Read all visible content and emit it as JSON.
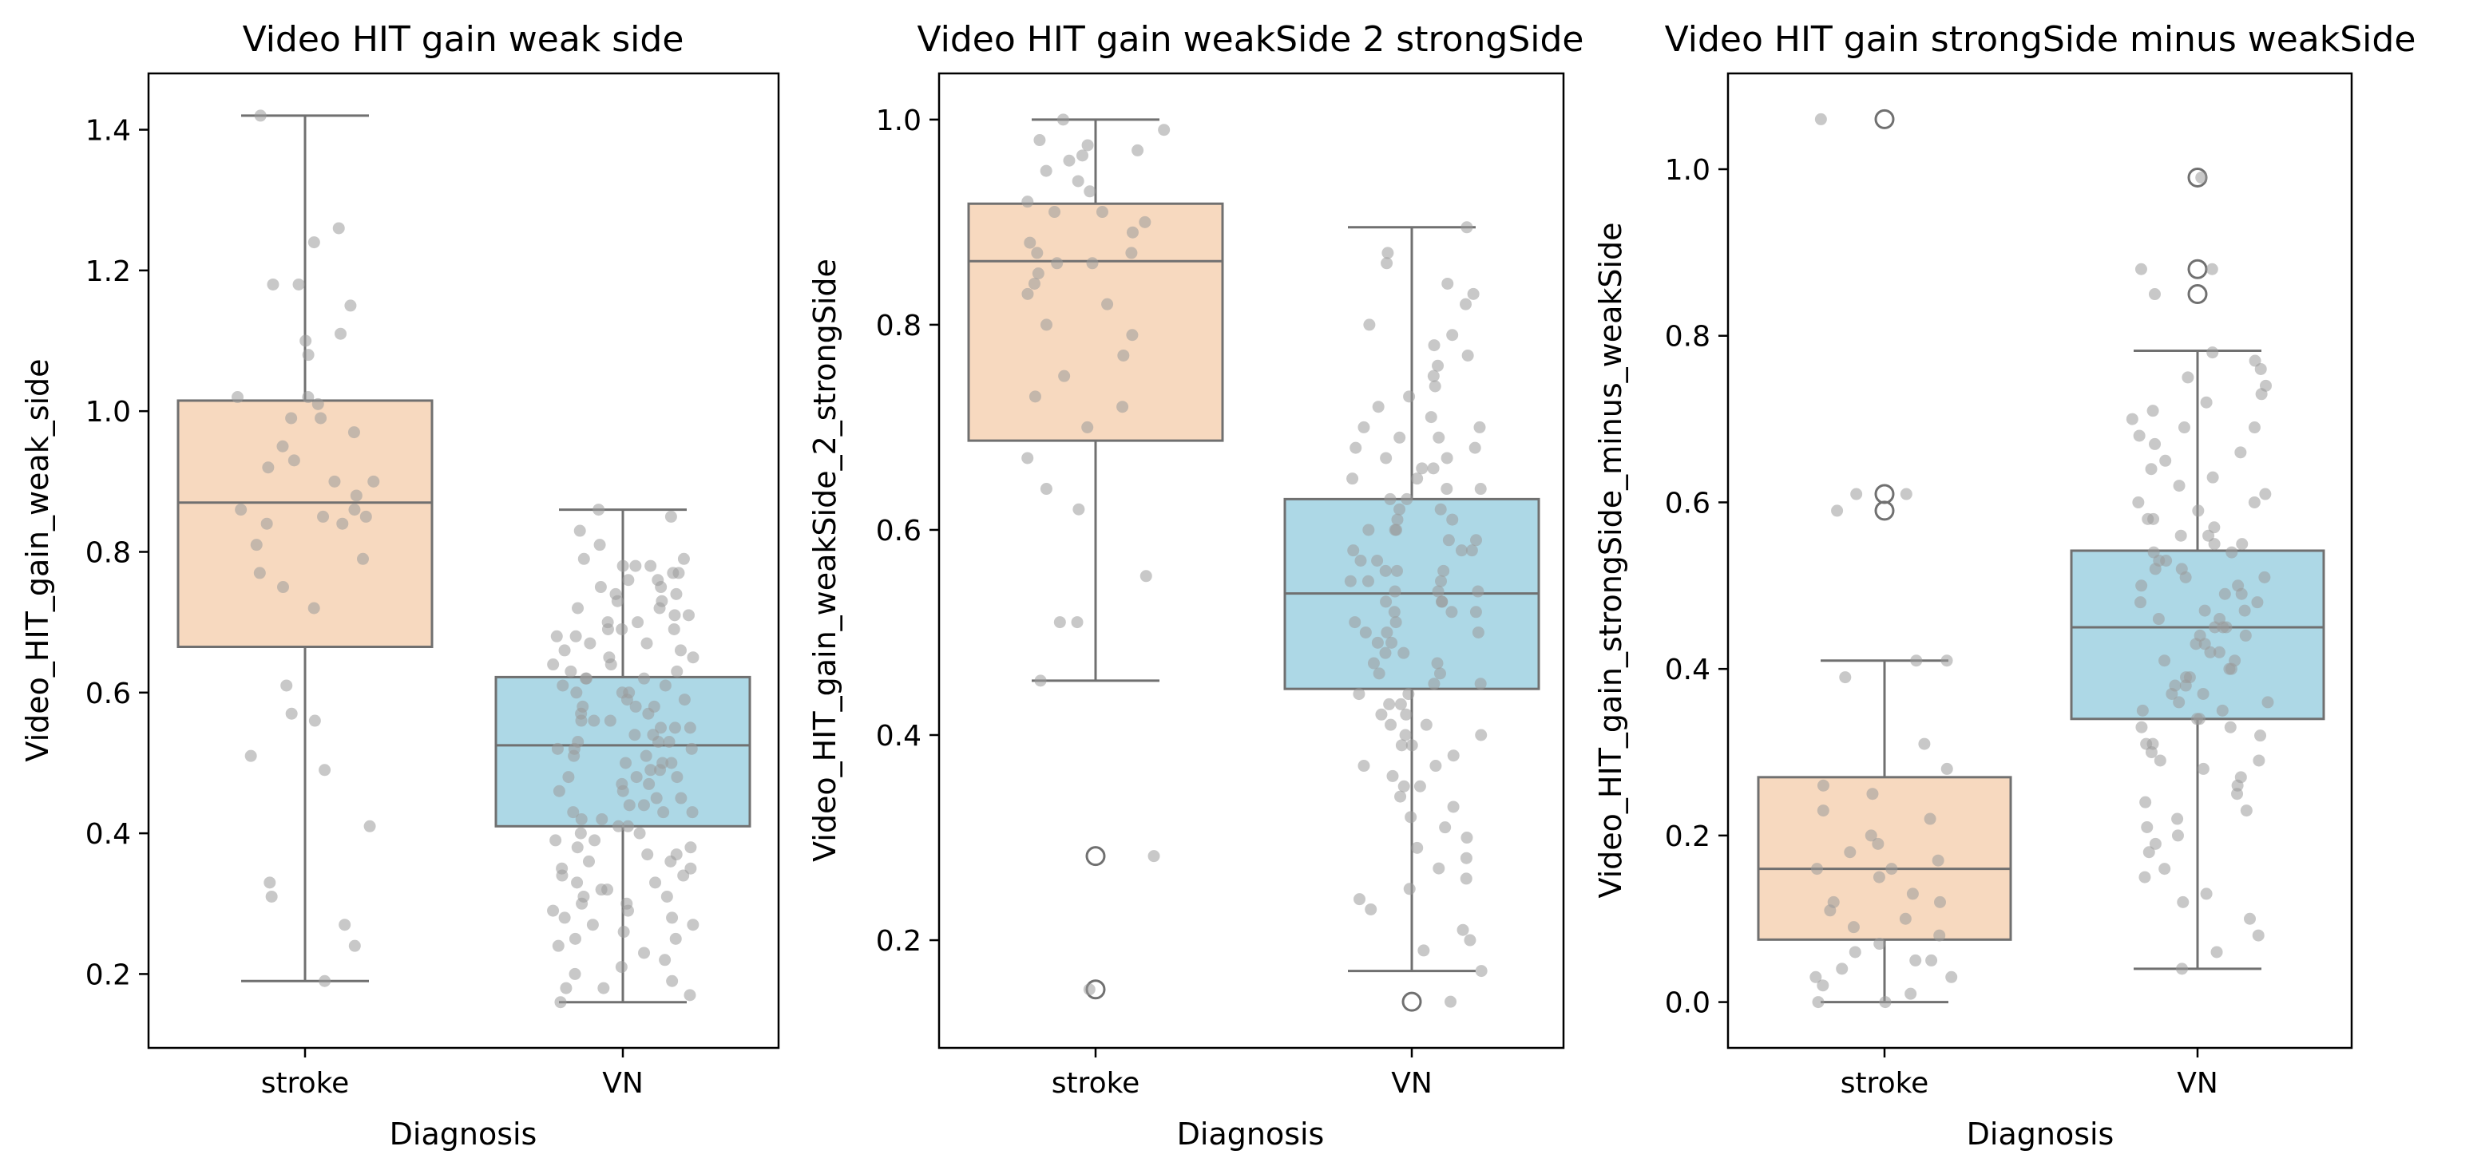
{
  "colors": {
    "stroke_box": "#f7d9bf",
    "vn_box": "#add8e6",
    "box_edge": "#707070",
    "points": "#9a9a9a"
  },
  "chart_data": [
    {
      "type": "boxplot",
      "title": "Video HIT gain weak side",
      "xlabel": "Diagnosis",
      "ylabel": "Video_HIT_gain_weak_side",
      "categories": [
        "stroke",
        "VN"
      ],
      "ylim": [
        0.095,
        1.48
      ],
      "yticks": [
        0.2,
        0.4,
        0.6,
        0.8,
        1.0,
        1.2,
        1.4
      ],
      "ytick_labels": [
        "0.2",
        "0.4",
        "0.6",
        "0.8",
        "1.0",
        "1.2",
        "1.4"
      ],
      "boxes": [
        {
          "category": "stroke",
          "whisker_low": 0.19,
          "q1": 0.665,
          "median": 0.87,
          "q3": 1.015,
          "whisker_high": 1.42,
          "outliers": []
        },
        {
          "category": "VN",
          "whisker_low": 0.16,
          "q1": 0.41,
          "median": 0.525,
          "q3": 0.622,
          "whisker_high": 0.86,
          "outliers": []
        }
      ],
      "points": {
        "stroke": [
          1.42,
          1.26,
          1.24,
          1.18,
          1.18,
          1.15,
          1.11,
          1.1,
          1.08,
          1.02,
          1.02,
          1.01,
          0.99,
          0.99,
          0.97,
          0.95,
          0.93,
          0.92,
          0.9,
          0.9,
          0.88,
          0.86,
          0.86,
          0.85,
          0.85,
          0.84,
          0.84,
          0.81,
          0.79,
          0.77,
          0.75,
          0.72,
          0.61,
          0.57,
          0.56,
          0.51,
          0.49,
          0.41,
          0.33,
          0.31,
          0.27,
          0.24,
          0.19
        ],
        "VN": [
          0.86,
          0.85,
          0.83,
          0.81,
          0.79,
          0.79,
          0.78,
          0.78,
          0.78,
          0.77,
          0.77,
          0.76,
          0.76,
          0.75,
          0.75,
          0.74,
          0.74,
          0.73,
          0.73,
          0.72,
          0.72,
          0.71,
          0.71,
          0.7,
          0.7,
          0.69,
          0.69,
          0.69,
          0.68,
          0.68,
          0.67,
          0.67,
          0.66,
          0.66,
          0.65,
          0.65,
          0.64,
          0.64,
          0.63,
          0.63,
          0.62,
          0.62,
          0.62,
          0.61,
          0.61,
          0.6,
          0.6,
          0.6,
          0.59,
          0.59,
          0.58,
          0.58,
          0.58,
          0.57,
          0.57,
          0.56,
          0.56,
          0.56,
          0.55,
          0.55,
          0.55,
          0.54,
          0.54,
          0.53,
          0.53,
          0.53,
          0.52,
          0.52,
          0.52,
          0.51,
          0.51,
          0.5,
          0.5,
          0.5,
          0.49,
          0.49,
          0.48,
          0.48,
          0.48,
          0.47,
          0.47,
          0.46,
          0.46,
          0.45,
          0.45,
          0.44,
          0.44,
          0.43,
          0.43,
          0.43,
          0.42,
          0.42,
          0.41,
          0.41,
          0.4,
          0.4,
          0.39,
          0.39,
          0.38,
          0.38,
          0.37,
          0.37,
          0.36,
          0.36,
          0.35,
          0.35,
          0.34,
          0.34,
          0.33,
          0.33,
          0.32,
          0.32,
          0.31,
          0.31,
          0.3,
          0.3,
          0.29,
          0.29,
          0.28,
          0.28,
          0.27,
          0.27,
          0.26,
          0.25,
          0.25,
          0.24,
          0.23,
          0.22,
          0.21,
          0.2,
          0.19,
          0.18,
          0.18,
          0.17,
          0.16
        ]
      }
    },
    {
      "type": "boxplot",
      "title": "Video HIT gain weakSide 2 strongSide",
      "xlabel": "Diagnosis",
      "ylabel": "Video_HIT_gain_weakSide_2_strongSide",
      "categories": [
        "stroke",
        "VN"
      ],
      "ylim": [
        0.095,
        1.045
      ],
      "yticks": [
        0.2,
        0.4,
        0.6,
        0.8,
        1.0
      ],
      "ytick_labels": [
        "0.2",
        "0.4",
        "0.6",
        "0.8",
        "1.0"
      ],
      "boxes": [
        {
          "category": "stroke",
          "whisker_low": 0.453,
          "q1": 0.687,
          "median": 0.862,
          "q3": 0.918,
          "whisker_high": 1.0,
          "outliers": [
            0.282,
            0.152
          ]
        },
        {
          "category": "VN",
          "whisker_low": 0.17,
          "q1": 0.445,
          "median": 0.538,
          "q3": 0.63,
          "whisker_high": 0.895,
          "outliers": [
            0.14
          ]
        }
      ],
      "points": {
        "stroke": [
          1.0,
          0.99,
          0.98,
          0.975,
          0.97,
          0.965,
          0.96,
          0.95,
          0.94,
          0.93,
          0.92,
          0.91,
          0.91,
          0.9,
          0.89,
          0.88,
          0.87,
          0.87,
          0.86,
          0.86,
          0.85,
          0.84,
          0.83,
          0.82,
          0.8,
          0.79,
          0.77,
          0.75,
          0.73,
          0.72,
          0.7,
          0.67,
          0.64,
          0.62,
          0.555,
          0.51,
          0.51,
          0.453,
          0.282,
          0.152
        ],
        "VN": [
          0.895,
          0.87,
          0.86,
          0.84,
          0.83,
          0.82,
          0.8,
          0.79,
          0.78,
          0.77,
          0.76,
          0.75,
          0.74,
          0.73,
          0.72,
          0.71,
          0.7,
          0.7,
          0.69,
          0.69,
          0.68,
          0.68,
          0.67,
          0.67,
          0.66,
          0.66,
          0.65,
          0.65,
          0.64,
          0.64,
          0.63,
          0.63,
          0.62,
          0.62,
          0.61,
          0.61,
          0.6,
          0.6,
          0.6,
          0.59,
          0.59,
          0.58,
          0.58,
          0.58,
          0.57,
          0.57,
          0.56,
          0.56,
          0.56,
          0.55,
          0.55,
          0.55,
          0.54,
          0.54,
          0.54,
          0.53,
          0.53,
          0.53,
          0.52,
          0.52,
          0.52,
          0.51,
          0.51,
          0.5,
          0.5,
          0.5,
          0.49,
          0.49,
          0.48,
          0.48,
          0.47,
          0.47,
          0.46,
          0.46,
          0.45,
          0.45,
          0.44,
          0.44,
          0.43,
          0.43,
          0.42,
          0.42,
          0.41,
          0.41,
          0.4,
          0.4,
          0.39,
          0.39,
          0.38,
          0.37,
          0.37,
          0.36,
          0.35,
          0.35,
          0.34,
          0.33,
          0.32,
          0.31,
          0.3,
          0.29,
          0.28,
          0.27,
          0.26,
          0.25,
          0.24,
          0.23,
          0.21,
          0.2,
          0.19,
          0.17,
          0.14
        ]
      }
    },
    {
      "type": "boxplot",
      "title": "Video HIT gain strongSide minus weakSide",
      "xlabel": "Diagnosis",
      "ylabel": "Video_HIT_gain_strongSide_minus_weakSide",
      "categories": [
        "stroke",
        "VN"
      ],
      "ylim": [
        -0.055,
        1.115
      ],
      "yticks": [
        0.0,
        0.2,
        0.4,
        0.6,
        0.8,
        1.0
      ],
      "ytick_labels": [
        "0.0",
        "0.2",
        "0.4",
        "0.6",
        "0.8",
        "1.0"
      ],
      "boxes": [
        {
          "category": "stroke",
          "whisker_low": 0.0,
          "q1": 0.075,
          "median": 0.16,
          "q3": 0.27,
          "whisker_high": 0.41,
          "outliers": [
            1.06,
            0.61,
            0.59
          ]
        },
        {
          "category": "VN",
          "whisker_low": 0.04,
          "q1": 0.34,
          "median": 0.45,
          "q3": 0.542,
          "whisker_high": 0.782,
          "outliers": [
            0.99,
            0.88,
            0.85
          ]
        }
      ],
      "points": {
        "stroke": [
          1.06,
          0.61,
          0.61,
          0.59,
          0.41,
          0.41,
          0.39,
          0.31,
          0.28,
          0.26,
          0.25,
          0.23,
          0.22,
          0.2,
          0.19,
          0.18,
          0.17,
          0.16,
          0.16,
          0.15,
          0.13,
          0.12,
          0.12,
          0.11,
          0.1,
          0.09,
          0.08,
          0.07,
          0.06,
          0.05,
          0.05,
          0.04,
          0.03,
          0.03,
          0.02,
          0.01,
          0.0,
          0.0
        ],
        "VN": [
          0.99,
          0.88,
          0.88,
          0.85,
          0.78,
          0.77,
          0.76,
          0.75,
          0.74,
          0.73,
          0.72,
          0.71,
          0.7,
          0.69,
          0.69,
          0.68,
          0.67,
          0.66,
          0.65,
          0.64,
          0.63,
          0.62,
          0.61,
          0.6,
          0.6,
          0.59,
          0.58,
          0.58,
          0.57,
          0.56,
          0.56,
          0.55,
          0.55,
          0.54,
          0.54,
          0.53,
          0.53,
          0.52,
          0.52,
          0.51,
          0.51,
          0.5,
          0.5,
          0.49,
          0.49,
          0.48,
          0.48,
          0.47,
          0.47,
          0.46,
          0.46,
          0.45,
          0.45,
          0.45,
          0.44,
          0.44,
          0.43,
          0.43,
          0.42,
          0.42,
          0.41,
          0.41,
          0.4,
          0.4,
          0.39,
          0.39,
          0.38,
          0.38,
          0.37,
          0.37,
          0.36,
          0.36,
          0.35,
          0.35,
          0.34,
          0.34,
          0.33,
          0.33,
          0.32,
          0.31,
          0.31,
          0.3,
          0.29,
          0.29,
          0.28,
          0.27,
          0.26,
          0.25,
          0.24,
          0.23,
          0.22,
          0.21,
          0.2,
          0.19,
          0.18,
          0.16,
          0.15,
          0.13,
          0.12,
          0.1,
          0.08,
          0.06,
          0.04
        ]
      }
    }
  ]
}
